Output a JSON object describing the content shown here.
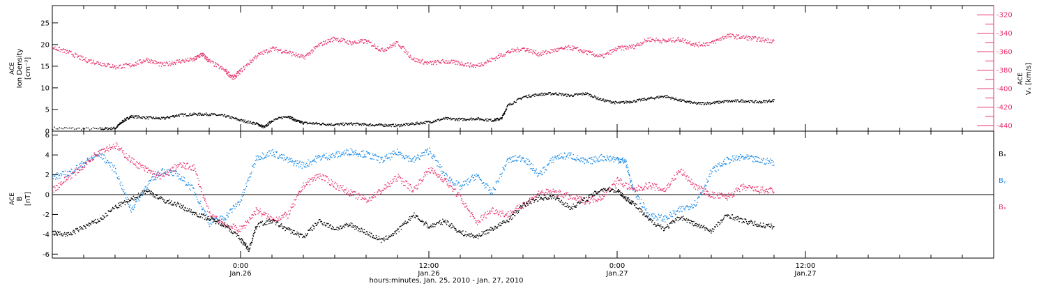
{
  "chart_data": [
    {
      "type": "scatter",
      "panel": "top",
      "xlabel": "hours:minutes, Jan. 25, 2010 - Jan. 27, 2010",
      "x_ticks": [
        {
          "hour": 24,
          "time": "0:00",
          "date": "Jan.26"
        },
        {
          "hour": 36,
          "time": "12:00",
          "date": "Jan.26"
        },
        {
          "hour": 48,
          "time": "0:00",
          "date": "Jan.27"
        },
        {
          "hour": 60,
          "time": "12:00",
          "date": "Jan.27"
        }
      ],
      "xlim": [
        12,
        72
      ],
      "left_axis": {
        "label_lines": [
          "ACE",
          "Ion Density"
        ],
        "unit_text": "[cm⁻³]",
        "ylim": [
          0,
          29
        ],
        "ticks": [
          0,
          5,
          10,
          15,
          20,
          25
        ],
        "color": "#000000"
      },
      "right_axis": {
        "label_lines": [
          "ACE",
          "Vₓ [km/s]"
        ],
        "ylim": [
          -446,
          -310
        ],
        "ticks": [
          -320,
          -340,
          -360,
          -380,
          -400,
          -420,
          -440
        ],
        "color": "#e8336b"
      },
      "series": [
        {
          "axis": "left",
          "color": "#000000",
          "points": [
            [
              12,
              0.8
            ],
            [
              15,
              0.6
            ],
            [
              16,
              0.8
            ],
            [
              16.5,
              2.5
            ],
            [
              17,
              3.5
            ],
            [
              18,
              3.2
            ],
            [
              19,
              3.0
            ],
            [
              20,
              3.8
            ],
            [
              21,
              4.0
            ],
            [
              22,
              4.0
            ],
            [
              23,
              3.6
            ],
            [
              24,
              2.6
            ],
            [
              25,
              1.8
            ],
            [
              25.5,
              1.0
            ],
            [
              26,
              2.6
            ],
            [
              27,
              3.6
            ],
            [
              27.5,
              2.5
            ],
            [
              28,
              2.0
            ],
            [
              29,
              1.8
            ],
            [
              30,
              1.6
            ],
            [
              31,
              1.8
            ],
            [
              32,
              1.6
            ],
            [
              33,
              1.5
            ],
            [
              34,
              1.4
            ],
            [
              35,
              1.8
            ],
            [
              36,
              2.2
            ],
            [
              37,
              3.0
            ],
            [
              38,
              2.8
            ],
            [
              39,
              3.0
            ],
            [
              40,
              2.6
            ],
            [
              40.6,
              3.0
            ],
            [
              41,
              6.0
            ],
            [
              42,
              8.0
            ],
            [
              43,
              8.6
            ],
            [
              44,
              8.8
            ],
            [
              45,
              8.3
            ],
            [
              46,
              8.8
            ],
            [
              47,
              7.3
            ],
            [
              48,
              6.6
            ],
            [
              49,
              7.0
            ],
            [
              50,
              7.6
            ],
            [
              51,
              8.2
            ],
            [
              52,
              7.2
            ],
            [
              53,
              6.5
            ],
            [
              54,
              6.6
            ],
            [
              55,
              7.0
            ],
            [
              56,
              7.1
            ],
            [
              57,
              6.8
            ],
            [
              58,
              7.2
            ]
          ]
        },
        {
          "axis": "right",
          "color": "#e8336b",
          "points": [
            [
              12,
              -355
            ],
            [
              13,
              -360
            ],
            [
              14,
              -368
            ],
            [
              15,
              -372
            ],
            [
              16,
              -376
            ],
            [
              17,
              -374
            ],
            [
              18,
              -368
            ],
            [
              19,
              -374
            ],
            [
              20,
              -370
            ],
            [
              21,
              -368
            ],
            [
              21.5,
              -362
            ],
            [
              22,
              -370
            ],
            [
              23,
              -380
            ],
            [
              23.5,
              -388
            ],
            [
              24,
              -380
            ],
            [
              25,
              -364
            ],
            [
              26,
              -356
            ],
            [
              27,
              -360
            ],
            [
              28,
              -366
            ],
            [
              29,
              -352
            ],
            [
              30,
              -345
            ],
            [
              31,
              -350
            ],
            [
              32,
              -348
            ],
            [
              33,
              -358
            ],
            [
              34,
              -350
            ],
            [
              35,
              -368
            ],
            [
              36,
              -372
            ],
            [
              37,
              -370
            ],
            [
              38,
              -372
            ],
            [
              39,
              -375
            ],
            [
              40,
              -368
            ],
            [
              41,
              -360
            ],
            [
              42,
              -356
            ],
            [
              43,
              -362
            ],
            [
              44,
              -358
            ],
            [
              45,
              -355
            ],
            [
              46,
              -360
            ],
            [
              47,
              -365
            ],
            [
              48,
              -356
            ],
            [
              49,
              -354
            ],
            [
              50,
              -346
            ],
            [
              51,
              -348
            ],
            [
              52,
              -346
            ],
            [
              53,
              -352
            ],
            [
              54,
              -350
            ],
            [
              55,
              -342
            ],
            [
              56,
              -344
            ],
            [
              57,
              -346
            ],
            [
              58,
              -348
            ]
          ]
        }
      ]
    },
    {
      "type": "scatter",
      "panel": "bottom",
      "left_axis": {
        "label_lines": [
          "ACE",
          "B"
        ],
        "unit_text": "[nT]",
        "ylim": [
          -6.4,
          6.4
        ],
        "ticks": [
          -6,
          -4,
          -2,
          0,
          2,
          4,
          6
        ]
      },
      "xlim": [
        12,
        72
      ],
      "zero_line": true,
      "legend": [
        "Bₓ",
        "Bᵧ",
        "Bₓ"
      ],
      "legend_placement": "right",
      "series": [
        {
          "name": "Bₓ",
          "color": "#000000",
          "points": [
            [
              12,
              -3.8
            ],
            [
              13,
              -4.0
            ],
            [
              14,
              -3.2
            ],
            [
              15,
              -2.5
            ],
            [
              16,
              -1.2
            ],
            [
              17,
              -0.5
            ],
            [
              18,
              0.5
            ],
            [
              19,
              -0.5
            ],
            [
              20,
              -1.0
            ],
            [
              21,
              -1.8
            ],
            [
              22,
              -2.4
            ],
            [
              23,
              -3.0
            ],
            [
              24,
              -4.5
            ],
            [
              24.5,
              -5.5
            ],
            [
              25,
              -3.0
            ],
            [
              26,
              -2.6
            ],
            [
              27,
              -3.5
            ],
            [
              28,
              -4.2
            ],
            [
              29,
              -2.6
            ],
            [
              30,
              -3.4
            ],
            [
              31,
              -3.0
            ],
            [
              32,
              -3.8
            ],
            [
              33,
              -4.6
            ],
            [
              34,
              -3.6
            ],
            [
              35,
              -2.0
            ],
            [
              36,
              -3.2
            ],
            [
              37,
              -2.6
            ],
            [
              38,
              -3.8
            ],
            [
              39,
              -4.2
            ],
            [
              40,
              -3.4
            ],
            [
              41,
              -2.6
            ],
            [
              42,
              -1.0
            ],
            [
              43,
              -0.3
            ],
            [
              44,
              -0.2
            ],
            [
              45,
              -1.3
            ],
            [
              46,
              -0.4
            ],
            [
              47,
              0.6
            ],
            [
              48,
              0.5
            ],
            [
              48.5,
              -0.3
            ],
            [
              49,
              -0.8
            ],
            [
              50,
              -2.5
            ],
            [
              51,
              -3.4
            ],
            [
              52,
              -2.2
            ],
            [
              53,
              -3.0
            ],
            [
              54,
              -3.6
            ],
            [
              55,
              -2.0
            ],
            [
              56,
              -2.6
            ],
            [
              57,
              -3.0
            ],
            [
              58,
              -3.2
            ]
          ]
        },
        {
          "name": "Bᵧ",
          "color": "#1a8ae6",
          "points": [
            [
              12,
              1.8
            ],
            [
              13,
              2.2
            ],
            [
              14,
              3.2
            ],
            [
              15,
              4.2
            ],
            [
              16,
              2.5
            ],
            [
              17,
              -1.5
            ],
            [
              18,
              1.0
            ],
            [
              19,
              2.5
            ],
            [
              20,
              2.0
            ],
            [
              21,
              0.5
            ],
            [
              22,
              -2.8
            ],
            [
              23,
              -2.2
            ],
            [
              24,
              -0.5
            ],
            [
              25,
              3.8
            ],
            [
              26,
              4.3
            ],
            [
              27,
              3.5
            ],
            [
              28,
              3.0
            ],
            [
              29,
              3.8
            ],
            [
              30,
              4.0
            ],
            [
              31,
              4.4
            ],
            [
              32,
              4.1
            ],
            [
              33,
              3.5
            ],
            [
              34,
              4.3
            ],
            [
              35,
              3.5
            ],
            [
              36,
              4.5
            ],
            [
              37,
              2.0
            ],
            [
              38,
              0.8
            ],
            [
              39,
              2.0
            ],
            [
              40,
              0.2
            ],
            [
              41,
              3.5
            ],
            [
              42,
              3.8
            ],
            [
              43,
              2.0
            ],
            [
              44,
              3.8
            ],
            [
              45,
              4.0
            ],
            [
              46,
              3.3
            ],
            [
              47,
              3.8
            ],
            [
              48,
              3.6
            ],
            [
              48.5,
              3.4
            ],
            [
              49,
              0.5
            ],
            [
              50,
              -2.0
            ],
            [
              51,
              -2.4
            ],
            [
              52,
              -1.5
            ],
            [
              53,
              -0.8
            ],
            [
              54,
              2.4
            ],
            [
              55,
              3.5
            ],
            [
              56,
              3.8
            ],
            [
              57,
              3.5
            ],
            [
              58,
              3.3
            ]
          ]
        },
        {
          "name": "Bₓ",
          "color": "#e8336b",
          "points": [
            [
              12,
              0.5
            ],
            [
              13,
              1.8
            ],
            [
              14,
              3.0
            ],
            [
              15,
              4.5
            ],
            [
              16,
              5.0
            ],
            [
              17,
              3.5
            ],
            [
              18,
              2.5
            ],
            [
              19,
              1.8
            ],
            [
              20,
              3.0
            ],
            [
              21,
              2.8
            ],
            [
              22,
              -2.0
            ],
            [
              23,
              -3.0
            ],
            [
              24,
              -3.5
            ],
            [
              25,
              -1.5
            ],
            [
              26,
              -2.5
            ],
            [
              27,
              -2.0
            ],
            [
              28,
              1.0
            ],
            [
              29,
              2.0
            ],
            [
              30,
              1.0
            ],
            [
              31,
              0.2
            ],
            [
              32,
              -0.5
            ],
            [
              33,
              0.5
            ],
            [
              34,
              1.8
            ],
            [
              35,
              0.5
            ],
            [
              36,
              2.6
            ],
            [
              37,
              1.5
            ],
            [
              38,
              -0.3
            ],
            [
              39,
              -2.8
            ],
            [
              40,
              -1.5
            ],
            [
              41,
              -2.0
            ],
            [
              42,
              -1.0
            ],
            [
              43,
              0.2
            ],
            [
              44,
              0.3
            ],
            [
              45,
              -0.2
            ],
            [
              46,
              -0.6
            ],
            [
              47,
              -0.2
            ],
            [
              48,
              1.5
            ],
            [
              49,
              0.5
            ],
            [
              50,
              1.0
            ],
            [
              51,
              0.5
            ],
            [
              52,
              2.5
            ],
            [
              53,
              0.8
            ],
            [
              54,
              0.0
            ],
            [
              55,
              -0.2
            ],
            [
              56,
              0.8
            ],
            [
              57,
              0.5
            ],
            [
              58,
              0.4
            ]
          ]
        }
      ]
    }
  ]
}
